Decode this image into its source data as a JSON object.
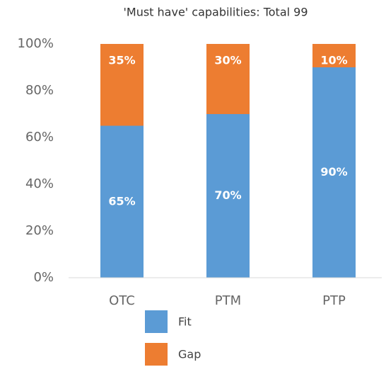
{
  "chart_data": {
    "type": "stacked_bar",
    "title": "'Must have' capabilities: Total 99",
    "categories": [
      "OTC",
      "PTM",
      "PTP"
    ],
    "series": [
      {
        "name": "Fit",
        "color": "#5b9bd5",
        "values": [
          65,
          70,
          90
        ],
        "value_labels": [
          "65%",
          "70%",
          "90%"
        ]
      },
      {
        "name": "Gap",
        "color": "#ed7d31",
        "values": [
          35,
          30,
          10
        ],
        "value_labels": [
          "35%",
          "30%",
          "10%"
        ]
      }
    ],
    "ylim": [
      0,
      100
    ],
    "yticks": [
      {
        "value": 0,
        "label": "0%"
      },
      {
        "value": 20,
        "label": "20%"
      },
      {
        "value": 40,
        "label": "40%"
      },
      {
        "value": 60,
        "label": "60%"
      },
      {
        "value": 80,
        "label": "80%"
      },
      {
        "value": 100,
        "label": "100%"
      }
    ],
    "grid": false
  }
}
